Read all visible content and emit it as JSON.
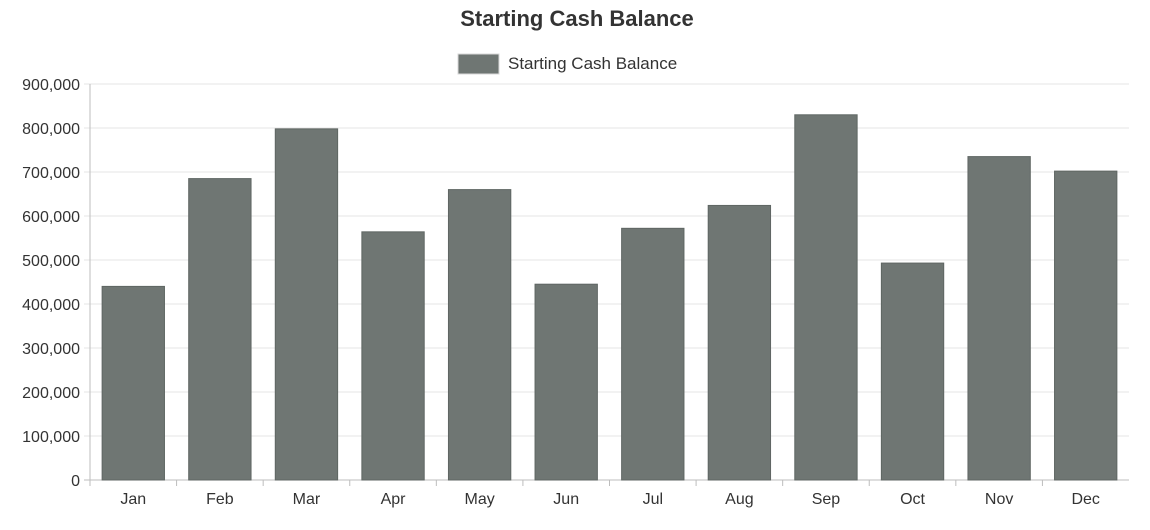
{
  "chart_data": {
    "type": "bar",
    "title": "Starting Cash Balance",
    "xlabel": "",
    "ylabel": "",
    "categories": [
      "Jan",
      "Feb",
      "Mar",
      "Apr",
      "May",
      "Jun",
      "Jul",
      "Aug",
      "Sep",
      "Oct",
      "Nov",
      "Dec"
    ],
    "series": [
      {
        "name": "Starting Cash Balance",
        "color": "#6f7673",
        "values": [
          440000,
          685000,
          798000,
          564000,
          660000,
          445000,
          572000,
          624000,
          830000,
          493000,
          735000,
          702000
        ]
      }
    ],
    "ylim": [
      0,
      900000
    ],
    "y_ticks": [
      "0",
      "100,000",
      "200,000",
      "300,000",
      "400,000",
      "500,000",
      "600,000",
      "700,000",
      "800,000",
      "900,000"
    ],
    "grid": true,
    "legend_position": "top-center"
  }
}
